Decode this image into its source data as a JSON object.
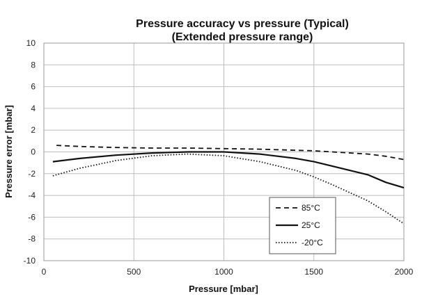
{
  "chart_data": {
    "type": "line",
    "title": "Pressure accuracy vs pressure (Typical)",
    "subtitle": "(Extended pressure range)",
    "xlabel": "Pressure [mbar]",
    "ylabel": "Pressure error [mbar]",
    "xlim": [
      0,
      2000
    ],
    "ylim": [
      -10,
      10
    ],
    "xticks": [
      0,
      500,
      1000,
      1500,
      2000
    ],
    "yticks": [
      10,
      8,
      6,
      4,
      2,
      0,
      -2,
      -4,
      -6,
      -8,
      -10
    ],
    "grid": true,
    "legend_position": "bottom-right",
    "series": [
      {
        "name": "85°C",
        "style": "dashed",
        "color": "#111111",
        "points": [
          [
            70,
            0.6
          ],
          [
            200,
            0.5
          ],
          [
            400,
            0.4
          ],
          [
            600,
            0.35
          ],
          [
            800,
            0.35
          ],
          [
            1000,
            0.3
          ],
          [
            1200,
            0.25
          ],
          [
            1400,
            0.15
          ],
          [
            1500,
            0.1
          ],
          [
            1600,
            0.0
          ],
          [
            1800,
            -0.2
          ],
          [
            1900,
            -0.4
          ],
          [
            2000,
            -0.7
          ]
        ]
      },
      {
        "name": "25°C",
        "style": "solid",
        "color": "#111111",
        "points": [
          [
            50,
            -0.9
          ],
          [
            200,
            -0.6
          ],
          [
            400,
            -0.3
          ],
          [
            600,
            -0.1
          ],
          [
            800,
            0.0
          ],
          [
            1000,
            0.0
          ],
          [
            1200,
            -0.2
          ],
          [
            1400,
            -0.6
          ],
          [
            1500,
            -0.9
          ],
          [
            1600,
            -1.3
          ],
          [
            1800,
            -2.1
          ],
          [
            1900,
            -2.8
          ],
          [
            2000,
            -3.3
          ]
        ]
      },
      {
        "name": "-20°C",
        "style": "dotted",
        "color": "#111111",
        "points": [
          [
            50,
            -2.2
          ],
          [
            200,
            -1.5
          ],
          [
            400,
            -0.8
          ],
          [
            600,
            -0.35
          ],
          [
            800,
            -0.2
          ],
          [
            1000,
            -0.35
          ],
          [
            1200,
            -0.9
          ],
          [
            1400,
            -1.7
          ],
          [
            1500,
            -2.3
          ],
          [
            1600,
            -3.0
          ],
          [
            1800,
            -4.5
          ],
          [
            1900,
            -5.5
          ],
          [
            2000,
            -6.6
          ]
        ]
      }
    ]
  }
}
